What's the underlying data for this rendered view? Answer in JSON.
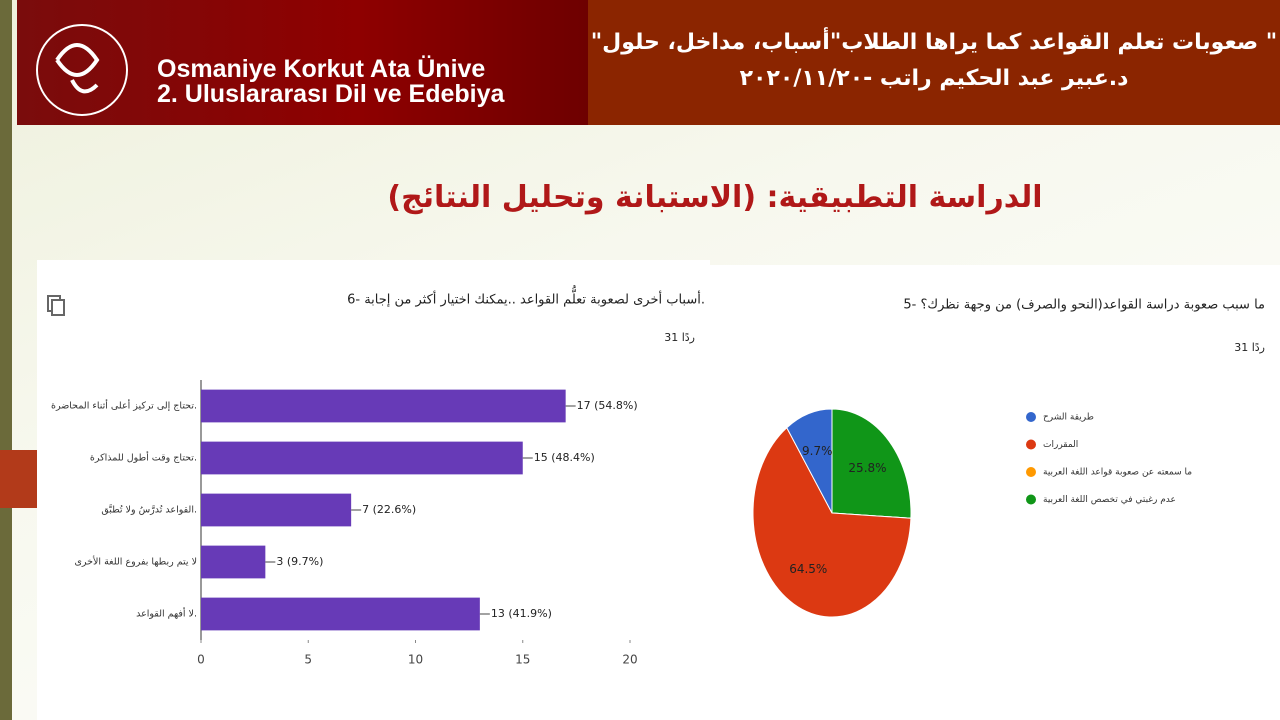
{
  "header": {
    "logo_line1": "Osmaniye Korkut Ata Ünive",
    "logo_line2": "2. Uluslararası Dil ve Edebiya",
    "title_line1": "\" صعوبات تعلم القواعد كما يراها الطلاب\"أسباب، مداخل، حلول\"",
    "title_line2": "د.عبير عبد الحكيم راتب  -٢٠٢٠/١١/٢٠"
  },
  "slide_title": "الدراسة التطبيقية: (الاستبانة وتحليل النتائج)",
  "chart_data": [
    {
      "type": "bar",
      "title": "6- أسباب أخرى لصعوبة تعلُّم القواعد ..يمكنك اختيار أكثر من إجابة.",
      "subtitle": "31 ردًا",
      "categories": [
        "تحتاج إلى تركيز أعلى أثناء المحاضرة.",
        "تحتاج وقت أطول للمذاكرة.",
        "القواعد تُدرَّسُ ولا تُطبَّق.",
        "لا يتم ربطها بفروع اللغة الأخرى",
        "لا أفهم القواعد."
      ],
      "values": [
        17,
        15,
        7,
        3,
        13
      ],
      "value_labels": [
        "17 (54.8%)",
        "15 (48.4%)",
        "7 (22.6%)",
        "3 (9.7%)",
        "13 (41.9%)"
      ],
      "color": "#673ab7",
      "xlim": [
        0,
        20
      ],
      "xticks": [
        0,
        5,
        10,
        15,
        20
      ]
    },
    {
      "type": "pie",
      "title": "5- ما سبب صعوبة دراسة القواعد(النحو والصرف) من وجهة نظرك؟",
      "subtitle": "31 ردًا",
      "categories": [
        "طريقة الشرح",
        "المقررات",
        "ما سمعته عن صعوبة قواعد اللغة العربية",
        "عدم رغبتي في تخصص اللغة العربية"
      ],
      "values": [
        9.7,
        64.5,
        0,
        25.8
      ],
      "value_labels": [
        "9.7%",
        "64.5%",
        null,
        "25.8%"
      ],
      "colors": [
        "#3366cc",
        "#dc3912",
        "#ff9900",
        "#109618"
      ]
    }
  ]
}
